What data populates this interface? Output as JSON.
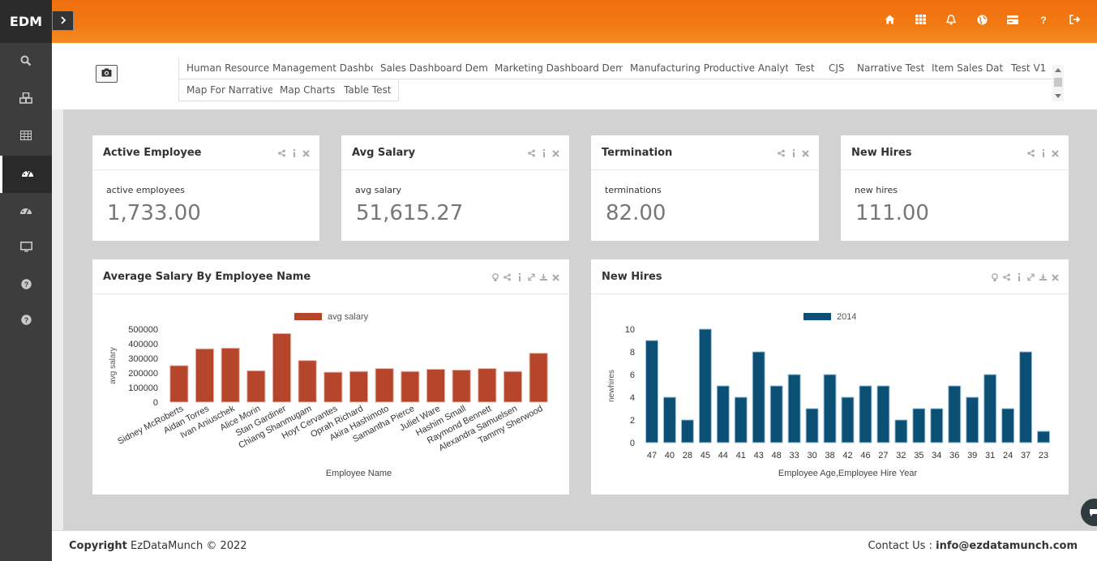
{
  "app": {
    "logo": "EDM"
  },
  "sidebar": {
    "items": [
      {
        "icon": "search-icon"
      },
      {
        "icon": "cubes-icon"
      },
      {
        "icon": "table-icon"
      },
      {
        "icon": "dashboard-icon",
        "active": true
      },
      {
        "icon": "dashboard-alt-icon"
      },
      {
        "icon": "monitor-icon"
      },
      {
        "icon": "help-icon"
      },
      {
        "icon": "help-alt-icon"
      }
    ]
  },
  "topbar": {
    "icons": [
      "home-icon",
      "apps-grid-icon",
      "bell-icon",
      "globe-icon",
      "card-icon",
      "question-icon",
      "logout-icon"
    ]
  },
  "tabs": {
    "row1": [
      "Human Resource Management Dashboard",
      "Sales Dashboard Demo",
      "Marketing Dashboard Demo",
      "Manufacturing Productive Analytics",
      "Test",
      "CJS",
      "Narrative Test",
      "Item Sales Data",
      "Test V1"
    ],
    "row2": [
      "Map For Narrative",
      "Map Charts",
      "Table Test"
    ]
  },
  "kpis": [
    {
      "title": "Active Employee",
      "label": "active employees",
      "value": "1,733.00"
    },
    {
      "title": "Avg Salary",
      "label": "avg salary",
      "value": "51,615.27"
    },
    {
      "title": "Termination",
      "label": "terminations",
      "value": "82.00"
    },
    {
      "title": "New Hires",
      "label": "new hires",
      "value": "111.00"
    }
  ],
  "charts": {
    "salary": {
      "title": "Average Salary By Employee Name"
    },
    "hires": {
      "title": "New Hires"
    }
  },
  "chart_data": [
    {
      "type": "bar",
      "title": "",
      "xlabel": "Employee Name",
      "ylabel": "avg salary",
      "ylim": [
        0,
        500000
      ],
      "yticks": [
        "500000",
        "400000",
        "300000",
        "200000",
        "100000",
        "0"
      ],
      "color": "#b5452b",
      "categories": [
        "Sidney McRoberts",
        "Aidan Torres",
        "Ivan Aniuschek",
        "Alice Morin",
        "Stan Gardiner",
        "Chiang Shanmugam",
        "Hoyt Cervantes",
        "Oprah Richard",
        "Akira Hashimoto",
        "Samantha Pierce",
        "Juliet Ware",
        "Hashim Small",
        "Raymond Bennett",
        "Alexandra Samuelsen",
        "Tammy Sherwood"
      ],
      "series": [
        {
          "name": "avg salary",
          "values": [
            250000,
            365000,
            370000,
            215000,
            470000,
            285000,
            205000,
            210000,
            230000,
            210000,
            225000,
            220000,
            230000,
            210000,
            335000
          ]
        }
      ]
    },
    {
      "type": "bar",
      "title": "",
      "xlabel": "Employee Age,Employee Hire Year",
      "ylabel": "newhires",
      "ylim": [
        0,
        10
      ],
      "yticks": [
        "10",
        "8",
        "6",
        "4",
        "2",
        "0"
      ],
      "color": "#0b4f75",
      "categories": [
        "47",
        "40",
        "28",
        "45",
        "44",
        "41",
        "43",
        "48",
        "33",
        "30",
        "38",
        "42",
        "46",
        "27",
        "32",
        "35",
        "34",
        "36",
        "39",
        "31",
        "24",
        "37",
        "23"
      ],
      "series": [
        {
          "name": "2014",
          "values": [
            9,
            4,
            2,
            10,
            5,
            4,
            8,
            5,
            6,
            3,
            6,
            4,
            5,
            5,
            2,
            3,
            3,
            5,
            4,
            6,
            3,
            8,
            1
          ]
        }
      ]
    }
  ],
  "footer": {
    "copyright_label": "Copyright",
    "copyright_rest": " EzDataMunch © 2022",
    "contact_label": "Contact Us : ",
    "email": "info@ezdatamunch.com"
  },
  "colors": {
    "accent": "#f27a12",
    "sidebar": "#3d3d3d"
  }
}
